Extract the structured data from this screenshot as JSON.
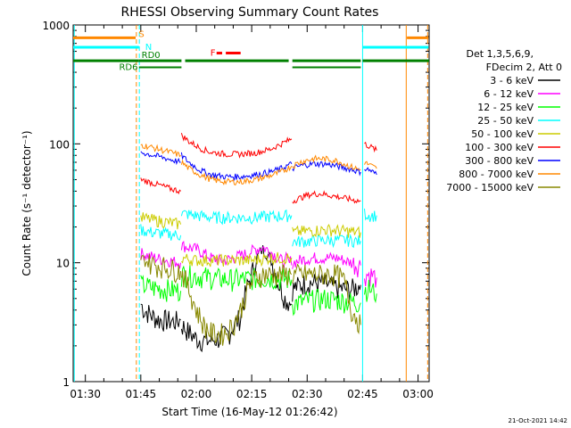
{
  "chart_data": {
    "type": "line",
    "title": "RHESSI Observing Summary Count Rates",
    "xlabel": "Start Time (16-May-12 01:26:42)",
    "ylabel": "Count Rate (s⁻¹ detector⁻¹)",
    "yscale": "log",
    "ylim": [
      1,
      1000
    ],
    "xlim_minutes": [
      86.7,
      183.0
    ],
    "x_ticks": [
      {
        "label": "01:30",
        "min": 90
      },
      {
        "label": "01:45",
        "min": 105
      },
      {
        "label": "02:00",
        "min": 120
      },
      {
        "label": "02:15",
        "min": 135
      },
      {
        "label": "02:30",
        "min": 150
      },
      {
        "label": "02:45",
        "min": 165
      },
      {
        "label": "03:00",
        "min": 180
      }
    ],
    "y_ticks": [
      {
        "label": "1",
        "value": 1
      },
      {
        "label": "10",
        "value": 10
      },
      {
        "label": "100",
        "value": 100
      },
      {
        "label": "1000",
        "value": 1000
      }
    ],
    "legend": {
      "header": [
        "Det 1,3,5,6,9,",
        "FDecim 2, Att 0"
      ],
      "placement": "right"
    },
    "series": [
      {
        "name": "3 - 6 keV",
        "color": "#000000",
        "segments": [
          {
            "x": [
              105.0,
              106,
              108,
              110,
              112,
              114,
              115.8
            ],
            "y": [
              4.5,
              4.0,
              3.6,
              3.3,
              3.3,
              3.2,
              3.3
            ]
          },
          {
            "x": [
              116.0,
              118,
              120,
              123,
              126,
              129,
              132,
              135,
              137,
              138,
              140,
              142,
              144,
              145.8
            ],
            "y": [
              3.0,
              2.6,
              2.3,
              2.2,
              2.3,
              2.6,
              3.5,
              8,
              12,
              13,
              11,
              7,
              5,
              4.5
            ]
          },
          {
            "x": [
              146.0,
              148,
              150,
              152,
              154,
              156,
              158,
              160,
              162,
              164.5
            ],
            "y": [
              6,
              6.5,
              6.8,
              6.8,
              6.8,
              6.5,
              6.2,
              6,
              6,
              6.5
            ]
          }
        ]
      },
      {
        "name": "6 - 12 keV",
        "color": "#ff00ff",
        "segments": [
          {
            "x": [
              105.0,
              107,
              109,
              112,
              115.8
            ],
            "y": [
              12,
              11.5,
              11,
              10.5,
              10
            ]
          },
          {
            "x": [
              116.0,
              118,
              120,
              122,
              124,
              126,
              128,
              130,
              132,
              134,
              136,
              138,
              140,
              142,
              144,
              145.8
            ],
            "y": [
              14,
              13.5,
              13,
              12,
              11,
              10.5,
              10.5,
              11,
              11.5,
              12,
              13,
              13.5,
              12.5,
              11,
              10,
              9.5
            ]
          },
          {
            "x": [
              146.0,
              148,
              150,
              152,
              154,
              156,
              158,
              160,
              162,
              164.5
            ],
            "y": [
              10,
              10.5,
              10.8,
              11,
              11,
              11,
              11,
              10.5,
              10,
              9.5
            ]
          },
          {
            "x": [
              165.5,
              167,
              168.8
            ],
            "y": [
              8,
              8,
              7.5
            ]
          }
        ]
      },
      {
        "name": "12 - 25 keV",
        "color": "#00ff00",
        "segments": [
          {
            "x": [
              105.0,
              108,
              112,
              115.8
            ],
            "y": [
              6.5,
              6.2,
              6.0,
              5.8
            ]
          },
          {
            "x": [
              116.0,
              120,
              124,
              128,
              132,
              136,
              140,
              145.8
            ],
            "y": [
              8,
              7.8,
              7.5,
              7.3,
              7.3,
              7.4,
              7.5,
              7.2
            ]
          },
          {
            "x": [
              146.0,
              150,
              155,
              160,
              164.5
            ],
            "y": [
              4.5,
              4.8,
              5.0,
              4.8,
              4.6
            ]
          },
          {
            "x": [
              165.5,
              167,
              168.8
            ],
            "y": [
              6,
              6,
              5.5
            ]
          }
        ]
      },
      {
        "name": "25 - 50 keV",
        "color": "#00ffff",
        "segments": [
          {
            "x": [
              90,
              100,
              104.5
            ],
            "y": [
              650,
              650,
              650
            ]
          },
          {
            "x": [
              105.0,
              108,
              112,
              115.8
            ],
            "y": [
              19,
              18,
              17.5,
              17
            ]
          },
          {
            "x": [
              116.0,
              120,
              125,
              130,
              135,
              140,
              145.8
            ],
            "y": [
              26,
              25,
              24,
              24,
              24,
              24.5,
              25
            ]
          },
          {
            "x": [
              146.0,
              150,
              155,
              160,
              164.5
            ],
            "y": [
              15,
              15.2,
              15.5,
              15.5,
              15.2
            ]
          },
          {
            "x": [
              165.5,
              167,
              168.8
            ],
            "y": [
              26,
              25,
              25
            ]
          },
          {
            "x": [
              165.0,
              172,
              178,
              182.8
            ],
            "y": [
              650,
              650,
              650,
              650
            ]
          }
        ]
      },
      {
        "name": "50 - 100 keV",
        "color": "#cccc00",
        "segments": [
          {
            "x": [
              105.0,
              108,
              112,
              115.8
            ],
            "y": [
              24,
              23,
              22,
              21
            ]
          },
          {
            "x": [
              116.0,
              120,
              125,
              130,
              135,
              140,
              145.8
            ],
            "y": [
              11,
              10.5,
              10.5,
              10.5,
              10.5,
              11,
              11
            ]
          },
          {
            "x": [
              146.0,
              150,
              155,
              160,
              164.5
            ],
            "y": [
              18,
              18.5,
              19,
              18.5,
              18
            ]
          }
        ]
      },
      {
        "name": "100 - 300 keV",
        "color": "#ff0000",
        "segments": [
          {
            "x": [
              105.0,
              107,
              110,
              113,
              115.8
            ],
            "y": [
              50,
              48,
              45,
              42,
              40
            ]
          },
          {
            "x": [
              116.0,
              118,
              121,
              124,
              128,
              132,
              136,
              140,
              143,
              145.8
            ],
            "y": [
              118,
              105,
              92,
              85,
              82,
              82,
              84,
              90,
              100,
              110
            ]
          },
          {
            "x": [
              146.0,
              148,
              150,
              152,
              154,
              156,
              158,
              160,
              162,
              164.5
            ],
            "y": [
              33,
              35,
              37,
              38,
              38,
              37,
              36,
              35,
              34,
              33
            ]
          },
          {
            "x": [
              165.5,
              167,
              168.8
            ],
            "y": [
              100,
              95,
              88
            ]
          }
        ]
      },
      {
        "name": "300 - 800 keV",
        "color": "#0000ff",
        "segments": [
          {
            "x": [
              105.0,
              107,
              110,
              113,
              115.8
            ],
            "y": [
              85,
              82,
              78,
              74,
              70
            ]
          },
          {
            "x": [
              116.0,
              118,
              121,
              124,
              128,
              132,
              136,
              140,
              143,
              145.8
            ],
            "y": [
              80,
              70,
              60,
              55,
              53,
              53,
              55,
              58,
              62,
              68
            ]
          },
          {
            "x": [
              146.0,
              148,
              150,
              152,
              154,
              156,
              158,
              160,
              162,
              164.5
            ],
            "y": [
              62,
              65,
              67,
              68,
              68,
              67,
              65,
              63,
              61,
              58
            ]
          },
          {
            "x": [
              165.5,
              167,
              168.8
            ],
            "y": [
              62,
              60,
              55
            ]
          }
        ]
      },
      {
        "name": "800 - 7000 keV",
        "color": "#ff8800",
        "segments": [
          {
            "x": [
              90,
              100,
              103.5
            ],
            "y": [
              780,
              780,
              780
            ]
          },
          {
            "x": [
              105.0,
              107,
              110,
              113,
              115.8
            ],
            "y": [
              98,
              95,
              90,
              85,
              80
            ]
          },
          {
            "x": [
              116.0,
              118,
              121,
              124,
              128,
              132,
              136,
              140,
              143,
              145.8
            ],
            "y": [
              70,
              62,
              55,
              50,
              48,
              48,
              50,
              54,
              58,
              65
            ]
          },
          {
            "x": [
              146.0,
              148,
              150,
              152,
              154,
              156,
              158,
              160,
              162,
              164.5
            ],
            "y": [
              65,
              70,
              73,
              75,
              75,
              74,
              72,
              68,
              64,
              60
            ]
          },
          {
            "x": [
              165.5,
              167,
              168.8
            ],
            "y": [
              70,
              66,
              62
            ]
          },
          {
            "x": [
              177.0,
              180,
              182.8
            ],
            "y": [
              780,
              780,
              780
            ]
          }
        ]
      },
      {
        "name": "7000 - 15000 keV",
        "color": "#888800",
        "segments": [
          {
            "x": [
              105.0,
              107,
              110,
              113,
              115.8
            ],
            "y": [
              11,
              10,
              9.5,
              9,
              8.5
            ]
          },
          {
            "x": [
              116.0,
              118,
              120,
              122,
              124,
              126,
              128,
              130,
              132,
              134,
              136,
              138,
              140,
              142,
              144,
              145.8
            ],
            "y": [
              8.5,
              6,
              4,
              3,
              2.6,
              2.5,
              2.6,
              3,
              4,
              6,
              7.5,
              8,
              8,
              8,
              8,
              8
            ]
          },
          {
            "x": [
              146.0,
              150,
              154,
              158,
              160,
              162,
              164.5
            ],
            "y": [
              8,
              8,
              8,
              8,
              7,
              4,
              3
            ]
          }
        ]
      }
    ],
    "state_bars": {
      "SAA": {
        "label": "S",
        "color": "#ff8800"
      },
      "Night": {
        "label": "N",
        "color": "#00ffff"
      },
      "Flare": {
        "label": "F",
        "color": "#ff0000",
        "intervals": [
          [
            125.5,
            127
          ],
          [
            128,
            132
          ]
        ],
        "value": 500
      },
      "RD0": {
        "label": "RD0",
        "color": "#008000",
        "value": 500,
        "intervals": [
          [
            86.7,
            104.5
          ],
          [
            104.5,
            116
          ],
          [
            117,
            145
          ],
          [
            146,
            164.5
          ],
          [
            165,
            183
          ]
        ]
      },
      "RD6": {
        "label": "RD6",
        "color": "#008000",
        "value": 440,
        "intervals": [
          [
            104.5,
            116
          ],
          [
            146,
            164.5
          ]
        ]
      }
    },
    "vertical_markers": [
      {
        "min": 87.0,
        "color": "#00ffff",
        "style": "solid"
      },
      {
        "min": 103.8,
        "color": "#ff8800",
        "style": "dashed"
      },
      {
        "min": 104.6,
        "color": "#00ffff",
        "style": "dashed"
      },
      {
        "min": 165.0,
        "color": "#00ffff",
        "style": "solid"
      },
      {
        "min": 176.8,
        "color": "#ff8800",
        "style": "solid"
      },
      {
        "min": 182.6,
        "color": "#ff8800",
        "style": "dashed"
      }
    ]
  },
  "footer": {
    "timestamp": "21-Oct-2021 14:42"
  }
}
